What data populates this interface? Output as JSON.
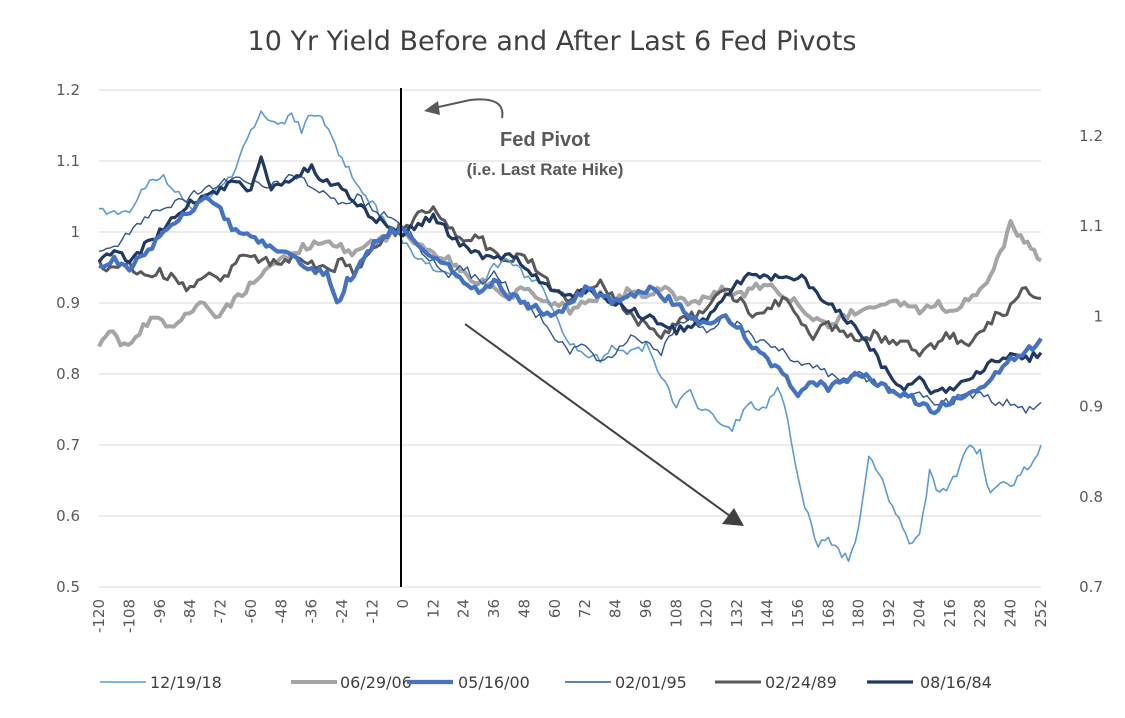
{
  "chart_data": {
    "type": "line",
    "title": "10 Yr Yield Before and After Last 6 Fed Pivots",
    "xlabel": "",
    "ylabel": "",
    "xlim": [
      -120,
      252
    ],
    "x_ticks": [
      -120,
      -108,
      -96,
      -84,
      -72,
      -60,
      -48,
      -36,
      -24,
      -12,
      0,
      12,
      24,
      36,
      48,
      60,
      72,
      84,
      96,
      108,
      120,
      132,
      144,
      156,
      168,
      180,
      192,
      204,
      216,
      228,
      240,
      252
    ],
    "ylim": [
      0.5,
      1.2
    ],
    "y_ticks": [
      "0.5",
      "0.6",
      "0.7",
      "0.8",
      "0.9",
      "1",
      "1.1",
      "1.2"
    ],
    "y2lim": [
      0.7,
      1.25
    ],
    "y2_ticks": [
      "0.7",
      "0.8",
      "0.9",
      "1",
      "1.1",
      "1.2"
    ],
    "grid": true,
    "legend_position": "bottom",
    "pivot_line_x": 0,
    "annotations": {
      "pivot_label": "Fed Pivot",
      "pivot_sublabel": "(i.e. Last Rate Hike)"
    },
    "series": [
      {
        "name": "12/19/18",
        "color": "#5b9bd5",
        "width": 1.6,
        "axis": "left",
        "x": [
          -120,
          -108,
          -100,
          -96,
          -90,
          -84,
          -78,
          -72,
          -66,
          -60,
          -56,
          -52,
          -48,
          -44,
          -40,
          -36,
          -32,
          -28,
          -24,
          -20,
          -16,
          -12,
          -8,
          -4,
          0,
          6,
          12,
          18,
          24,
          30,
          36,
          42,
          48,
          54,
          60,
          66,
          72,
          78,
          84,
          90,
          96,
          102,
          108,
          112,
          118,
          124,
          130,
          136,
          142,
          148,
          152,
          156,
          160,
          164,
          168,
          172,
          176,
          180,
          184,
          188,
          192,
          196,
          200,
          204,
          208,
          212,
          216,
          220,
          224,
          228,
          232,
          236,
          240,
          244,
          248,
          252
        ],
        "y": [
          1.03,
          1.03,
          1.07,
          1.08,
          1.06,
          1.03,
          1.05,
          1.06,
          1.09,
          1.14,
          1.17,
          1.16,
          1.15,
          1.17,
          1.14,
          1.17,
          1.16,
          1.13,
          1.1,
          1.08,
          1.06,
          1.04,
          1.02,
          1.0,
          0.99,
          0.96,
          0.95,
          0.94,
          0.93,
          0.92,
          0.95,
          0.96,
          0.94,
          0.93,
          0.89,
          0.84,
          0.83,
          0.82,
          0.84,
          0.83,
          0.84,
          0.8,
          0.75,
          0.78,
          0.75,
          0.74,
          0.72,
          0.76,
          0.75,
          0.78,
          0.74,
          0.65,
          0.6,
          0.56,
          0.57,
          0.55,
          0.54,
          0.58,
          0.69,
          0.66,
          0.62,
          0.6,
          0.56,
          0.57,
          0.66,
          0.63,
          0.64,
          0.67,
          0.7,
          0.69,
          0.63,
          0.65,
          0.64,
          0.66,
          0.67,
          0.7
        ]
      },
      {
        "name": "06/29/06",
        "color": "#a5a5a5",
        "width": 4,
        "axis": "left",
        "x": [
          -120,
          -116,
          -110,
          -104,
          -98,
          -92,
          -86,
          -80,
          -74,
          -68,
          -62,
          -56,
          -50,
          -44,
          -38,
          -32,
          -26,
          -20,
          -14,
          -8,
          -4,
          0,
          6,
          12,
          18,
          24,
          30,
          36,
          42,
          48,
          54,
          60,
          66,
          72,
          78,
          84,
          90,
          96,
          102,
          108,
          114,
          120,
          126,
          132,
          138,
          144,
          150,
          156,
          162,
          168,
          174,
          180,
          186,
          192,
          198,
          204,
          210,
          216,
          222,
          228,
          232,
          236,
          240,
          244,
          248,
          252
        ],
        "y": [
          0.84,
          0.86,
          0.84,
          0.86,
          0.88,
          0.87,
          0.88,
          0.9,
          0.88,
          0.9,
          0.92,
          0.94,
          0.96,
          0.97,
          0.98,
          0.99,
          0.98,
          0.97,
          0.98,
          0.99,
          1.0,
          1.0,
          0.98,
          0.97,
          0.96,
          0.94,
          0.93,
          0.92,
          0.91,
          0.92,
          0.91,
          0.9,
          0.89,
          0.9,
          0.91,
          0.9,
          0.92,
          0.91,
          0.92,
          0.91,
          0.9,
          0.91,
          0.92,
          0.91,
          0.92,
          0.93,
          0.91,
          0.9,
          0.88,
          0.87,
          0.88,
          0.89,
          0.89,
          0.9,
          0.9,
          0.89,
          0.9,
          0.89,
          0.9,
          0.92,
          0.94,
          0.97,
          1.01,
          0.99,
          0.98,
          0.96
        ]
      },
      {
        "name": "05/16/00",
        "color": "#4472c4",
        "width": 4.2,
        "axis": "left",
        "x": [
          -120,
          -114,
          -108,
          -102,
          -96,
          -90,
          -84,
          -78,
          -72,
          -66,
          -60,
          -54,
          -48,
          -42,
          -36,
          -30,
          -26,
          -22,
          -18,
          -14,
          -10,
          -6,
          -2,
          0,
          6,
          12,
          18,
          24,
          30,
          36,
          42,
          48,
          54,
          60,
          66,
          72,
          78,
          84,
          90,
          96,
          102,
          108,
          114,
          120,
          126,
          132,
          138,
          144,
          150,
          156,
          162,
          168,
          174,
          180,
          186,
          192,
          198,
          204,
          210,
          216,
          222,
          228,
          234,
          240,
          246,
          250,
          252
        ],
        "y": [
          0.95,
          0.96,
          0.95,
          0.97,
          0.99,
          1.01,
          1.03,
          1.05,
          1.03,
          1.0,
          0.99,
          0.98,
          0.97,
          0.96,
          0.95,
          0.94,
          0.9,
          0.93,
          0.95,
          0.97,
          0.99,
          1.0,
          1.0,
          1.01,
          0.98,
          0.96,
          0.95,
          0.93,
          0.92,
          0.93,
          0.91,
          0.9,
          0.89,
          0.88,
          0.9,
          0.92,
          0.91,
          0.9,
          0.91,
          0.92,
          0.91,
          0.9,
          0.88,
          0.87,
          0.88,
          0.87,
          0.84,
          0.82,
          0.8,
          0.77,
          0.79,
          0.78,
          0.79,
          0.8,
          0.79,
          0.78,
          0.77,
          0.76,
          0.75,
          0.76,
          0.77,
          0.78,
          0.8,
          0.82,
          0.83,
          0.84,
          0.85
        ]
      },
      {
        "name": "02/01/95",
        "color": "#2e5597",
        "width": 1.4,
        "axis": "left",
        "x": [
          -120,
          -114,
          -108,
          -102,
          -96,
          -90,
          -84,
          -78,
          -72,
          -66,
          -60,
          -54,
          -48,
          -42,
          -36,
          -30,
          -24,
          -18,
          -12,
          -6,
          0,
          6,
          12,
          18,
          24,
          30,
          36,
          42,
          48,
          54,
          60,
          66,
          72,
          78,
          84,
          90,
          96,
          102,
          108,
          114,
          120,
          126,
          132,
          138,
          144,
          150,
          156,
          162,
          168,
          174,
          180,
          186,
          192,
          198,
          204,
          210,
          216,
          222,
          228,
          234,
          240,
          246,
          252
        ],
        "y": [
          0.97,
          0.98,
          1.0,
          1.02,
          1.03,
          1.04,
          1.05,
          1.06,
          1.07,
          1.08,
          1.07,
          1.06,
          1.07,
          1.08,
          1.06,
          1.05,
          1.04,
          1.05,
          1.03,
          1.02,
          1.01,
          0.98,
          0.96,
          0.94,
          0.95,
          0.93,
          0.94,
          0.92,
          0.9,
          0.88,
          0.85,
          0.83,
          0.84,
          0.82,
          0.83,
          0.85,
          0.84,
          0.83,
          0.87,
          0.88,
          0.86,
          0.88,
          0.87,
          0.85,
          0.84,
          0.83,
          0.82,
          0.81,
          0.8,
          0.79,
          0.8,
          0.79,
          0.78,
          0.77,
          0.77,
          0.76,
          0.76,
          0.77,
          0.77,
          0.76,
          0.76,
          0.75,
          0.76
        ]
      },
      {
        "name": "02/24/89",
        "color": "#595959",
        "width": 3,
        "axis": "right",
        "x": [
          -120,
          -114,
          -108,
          -102,
          -96,
          -90,
          -84,
          -78,
          -72,
          -66,
          -60,
          -54,
          -48,
          -42,
          -36,
          -30,
          -24,
          -18,
          -12,
          -6,
          0,
          6,
          12,
          18,
          24,
          30,
          36,
          42,
          48,
          54,
          60,
          66,
          72,
          78,
          84,
          90,
          96,
          102,
          108,
          114,
          120,
          126,
          132,
          138,
          144,
          150,
          156,
          162,
          168,
          174,
          180,
          186,
          192,
          198,
          204,
          210,
          216,
          222,
          228,
          234,
          240,
          246,
          252
        ],
        "y": [
          1.06,
          1.05,
          1.06,
          1.04,
          1.05,
          1.04,
          1.03,
          1.05,
          1.04,
          1.06,
          1.07,
          1.06,
          1.06,
          1.07,
          1.06,
          1.05,
          1.06,
          1.05,
          1.07,
          1.09,
          1.1,
          1.11,
          1.12,
          1.1,
          1.08,
          1.09,
          1.07,
          1.06,
          1.07,
          1.05,
          1.03,
          1.02,
          1.03,
          1.04,
          1.02,
          1.0,
          0.99,
          0.98,
          0.99,
          1.0,
          1.01,
          1.03,
          1.02,
          1.0,
          1.01,
          1.02,
          1.0,
          0.98,
          0.99,
          0.98,
          0.97,
          0.98,
          0.97,
          0.97,
          0.96,
          0.97,
          0.98,
          0.97,
          0.98,
          1.0,
          1.01,
          1.03,
          1.02
        ]
      },
      {
        "name": "08/16/84",
        "color": "#203864",
        "width": 3.2,
        "axis": "left",
        "x": [
          -120,
          -114,
          -108,
          -102,
          -96,
          -90,
          -84,
          -78,
          -72,
          -66,
          -60,
          -56,
          -52,
          -48,
          -42,
          -36,
          -30,
          -24,
          -18,
          -12,
          -6,
          0,
          6,
          12,
          18,
          24,
          30,
          36,
          42,
          48,
          54,
          60,
          66,
          72,
          78,
          84,
          90,
          96,
          102,
          108,
          114,
          120,
          126,
          132,
          138,
          144,
          150,
          156,
          162,
          168,
          174,
          180,
          186,
          192,
          198,
          204,
          210,
          216,
          222,
          228,
          234,
          240,
          246,
          252
        ],
        "y": [
          0.96,
          0.97,
          0.96,
          0.98,
          1.0,
          1.02,
          1.04,
          1.05,
          1.06,
          1.07,
          1.06,
          1.1,
          1.06,
          1.07,
          1.08,
          1.09,
          1.07,
          1.06,
          1.04,
          1.02,
          1.01,
          1.0,
          1.01,
          1.02,
          1.0,
          0.98,
          0.97,
          0.96,
          0.97,
          0.95,
          0.93,
          0.92,
          0.91,
          0.92,
          0.91,
          0.9,
          0.89,
          0.88,
          0.87,
          0.86,
          0.87,
          0.88,
          0.9,
          0.93,
          0.94,
          0.94,
          0.93,
          0.94,
          0.92,
          0.9,
          0.88,
          0.86,
          0.83,
          0.8,
          0.78,
          0.79,
          0.77,
          0.78,
          0.79,
          0.8,
          0.82,
          0.83,
          0.82,
          0.83
        ]
      }
    ]
  }
}
